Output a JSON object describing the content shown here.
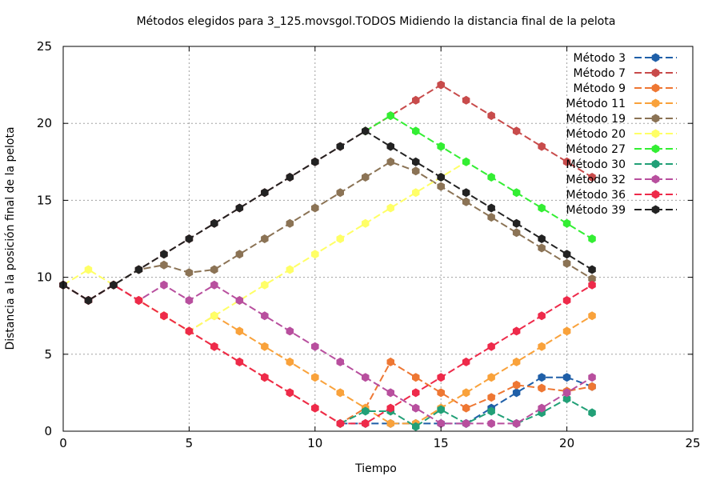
{
  "chart_data": {
    "type": "line",
    "title": "Métodos elegidos para 3_125.movsgol.TODOS Midiendo la distancia final de la pelota",
    "xlabel": "Tiempo",
    "ylabel": "Distancia a la posición final de la pelota",
    "xlim": [
      0,
      25
    ],
    "ylim": [
      0,
      25
    ],
    "xticks": [
      0,
      5,
      10,
      15,
      20,
      25
    ],
    "yticks": [
      0,
      5,
      10,
      15,
      20,
      25
    ],
    "grid": true,
    "legend_position": "top-right",
    "series": [
      {
        "name": "Método 3",
        "color": "#1f5fa8",
        "points": [
          [
            11,
            0.5
          ],
          [
            12,
            0.5
          ],
          [
            13,
            0.5
          ],
          [
            14,
            0.5
          ],
          [
            15,
            0.5
          ],
          [
            16,
            0.5
          ],
          [
            17,
            1.5
          ],
          [
            18,
            2.5
          ],
          [
            19,
            3.5
          ],
          [
            20,
            3.5
          ],
          [
            21,
            2.9
          ]
        ]
      },
      {
        "name": "Método 7",
        "color": "#c84b4b",
        "points": [
          [
            0,
            9.5
          ],
          [
            1,
            8.5
          ],
          [
            2,
            9.5
          ],
          [
            3,
            10.5
          ],
          [
            4,
            11.5
          ],
          [
            5,
            12.5
          ],
          [
            6,
            13.5
          ],
          [
            7,
            14.5
          ],
          [
            8,
            15.5
          ],
          [
            9,
            16.5
          ],
          [
            10,
            17.5
          ],
          [
            11,
            18.5
          ],
          [
            12,
            19.5
          ],
          [
            13,
            20.5
          ],
          [
            14,
            21.5
          ],
          [
            15,
            22.5
          ],
          [
            16,
            21.5
          ],
          [
            17,
            20.5
          ],
          [
            18,
            19.5
          ],
          [
            19,
            18.5
          ],
          [
            20,
            17.5
          ],
          [
            21,
            16.5
          ]
        ]
      },
      {
        "name": "Método 9",
        "color": "#ee7733",
        "points": [
          [
            0,
            9.5
          ],
          [
            1,
            8.5
          ],
          [
            2,
            9.5
          ],
          [
            3,
            8.5
          ],
          [
            4,
            7.5
          ],
          [
            5,
            6.5
          ],
          [
            6,
            5.5
          ],
          [
            7,
            4.5
          ],
          [
            8,
            3.5
          ],
          [
            9,
            2.5
          ],
          [
            10,
            1.5
          ],
          [
            11,
            0.5
          ],
          [
            12,
            1.5
          ],
          [
            13,
            4.5
          ],
          [
            14,
            3.5
          ],
          [
            15,
            2.5
          ],
          [
            16,
            1.5
          ],
          [
            17,
            2.2
          ],
          [
            18,
            3.0
          ],
          [
            19,
            2.8
          ],
          [
            20,
            2.6
          ],
          [
            21,
            2.9
          ]
        ]
      },
      {
        "name": "Método 11",
        "color": "#f9a23b",
        "points": [
          [
            0,
            9.5
          ],
          [
            1,
            8.5
          ],
          [
            2,
            9.5
          ],
          [
            3,
            8.5
          ],
          [
            4,
            7.5
          ],
          [
            5,
            6.5
          ],
          [
            6,
            7.5
          ],
          [
            7,
            6.5
          ],
          [
            8,
            5.5
          ],
          [
            9,
            4.5
          ],
          [
            10,
            3.5
          ],
          [
            11,
            2.5
          ],
          [
            12,
            1.5
          ],
          [
            13,
            0.5
          ],
          [
            14,
            0.5
          ],
          [
            15,
            1.5
          ],
          [
            16,
            2.5
          ],
          [
            17,
            3.5
          ],
          [
            18,
            4.5
          ],
          [
            19,
            5.5
          ],
          [
            20,
            6.5
          ],
          [
            21,
            7.5
          ]
        ]
      },
      {
        "name": "Método 19",
        "color": "#8b7355",
        "points": [
          [
            0,
            9.5
          ],
          [
            1,
            8.5
          ],
          [
            2,
            9.5
          ],
          [
            3,
            10.5
          ],
          [
            4,
            10.8
          ],
          [
            5,
            10.3
          ],
          [
            6,
            10.5
          ],
          [
            7,
            11.5
          ],
          [
            8,
            12.5
          ],
          [
            9,
            13.5
          ],
          [
            10,
            14.5
          ],
          [
            11,
            15.5
          ],
          [
            12,
            16.5
          ],
          [
            13,
            17.5
          ],
          [
            14,
            16.9
          ],
          [
            15,
            15.9
          ],
          [
            16,
            14.9
          ],
          [
            17,
            13.9
          ],
          [
            18,
            12.9
          ],
          [
            19,
            11.9
          ],
          [
            20,
            10.9
          ],
          [
            21,
            9.9
          ]
        ]
      },
      {
        "name": "Método 20",
        "color": "#ffff66",
        "points": [
          [
            0,
            9.5
          ],
          [
            1,
            10.5
          ],
          [
            2,
            9.5
          ],
          [
            3,
            8.5
          ],
          [
            4,
            7.5
          ],
          [
            5,
            6.5
          ],
          [
            6,
            7.5
          ],
          [
            7,
            8.5
          ],
          [
            8,
            9.5
          ],
          [
            9,
            10.5
          ],
          [
            10,
            11.5
          ],
          [
            11,
            12.5
          ],
          [
            12,
            13.5
          ],
          [
            13,
            14.5
          ],
          [
            14,
            15.5
          ],
          [
            15,
            16.5
          ],
          [
            16,
            17.5
          ]
        ]
      },
      {
        "name": "Método 27",
        "color": "#33ee33",
        "points": [
          [
            12,
            19.5
          ],
          [
            13,
            20.5
          ],
          [
            14,
            19.5
          ],
          [
            15,
            18.5
          ],
          [
            16,
            17.5
          ],
          [
            17,
            16.5
          ],
          [
            18,
            15.5
          ],
          [
            19,
            14.5
          ],
          [
            20,
            13.5
          ],
          [
            21,
            12.5
          ]
        ]
      },
      {
        "name": "Método 30",
        "color": "#22a077",
        "points": [
          [
            11,
            0.5
          ],
          [
            12,
            1.3
          ],
          [
            13,
            1.3
          ],
          [
            14,
            0.3
          ],
          [
            15,
            1.4
          ],
          [
            16,
            0.5
          ],
          [
            17,
            1.3
          ],
          [
            18,
            0.5
          ],
          [
            19,
            1.2
          ],
          [
            20,
            2.1
          ],
          [
            21,
            1.2
          ]
        ]
      },
      {
        "name": "Método 32",
        "color": "#b84f9e",
        "points": [
          [
            0,
            9.5
          ],
          [
            1,
            8.5
          ],
          [
            2,
            9.5
          ],
          [
            3,
            8.5
          ],
          [
            4,
            9.5
          ],
          [
            5,
            8.5
          ],
          [
            6,
            9.5
          ],
          [
            7,
            8.5
          ],
          [
            8,
            7.5
          ],
          [
            9,
            6.5
          ],
          [
            10,
            5.5
          ],
          [
            11,
            4.5
          ],
          [
            12,
            3.5
          ],
          [
            13,
            2.5
          ],
          [
            14,
            1.5
          ],
          [
            15,
            0.5
          ],
          [
            16,
            0.5
          ],
          [
            17,
            0.5
          ],
          [
            18,
            0.5
          ],
          [
            19,
            1.5
          ],
          [
            20,
            2.5
          ],
          [
            21,
            3.5
          ]
        ]
      },
      {
        "name": "Método 36",
        "color": "#ee2a4a",
        "points": [
          [
            0,
            9.5
          ],
          [
            1,
            8.5
          ],
          [
            2,
            9.5
          ],
          [
            3,
            8.5
          ],
          [
            4,
            7.5
          ],
          [
            5,
            6.5
          ],
          [
            6,
            5.5
          ],
          [
            7,
            4.5
          ],
          [
            8,
            3.5
          ],
          [
            9,
            2.5
          ],
          [
            10,
            1.5
          ],
          [
            11,
            0.5
          ],
          [
            12,
            0.5
          ],
          [
            13,
            1.5
          ],
          [
            14,
            2.5
          ],
          [
            15,
            3.5
          ],
          [
            16,
            4.5
          ],
          [
            17,
            5.5
          ],
          [
            18,
            6.5
          ],
          [
            19,
            7.5
          ],
          [
            20,
            8.5
          ],
          [
            21,
            9.5
          ]
        ]
      },
      {
        "name": "Método 39",
        "color": "#222222",
        "points": [
          [
            0,
            9.5
          ],
          [
            1,
            8.5
          ],
          [
            2,
            9.5
          ],
          [
            3,
            10.5
          ],
          [
            4,
            11.5
          ],
          [
            5,
            12.5
          ],
          [
            6,
            13.5
          ],
          [
            7,
            14.5
          ],
          [
            8,
            15.5
          ],
          [
            9,
            16.5
          ],
          [
            10,
            17.5
          ],
          [
            11,
            18.5
          ],
          [
            12,
            19.5
          ],
          [
            13,
            18.5
          ],
          [
            14,
            17.5
          ],
          [
            15,
            16.5
          ],
          [
            16,
            15.5
          ],
          [
            17,
            14.5
          ],
          [
            18,
            13.5
          ],
          [
            19,
            12.5
          ],
          [
            20,
            11.5
          ],
          [
            21,
            10.5
          ]
        ]
      }
    ]
  }
}
